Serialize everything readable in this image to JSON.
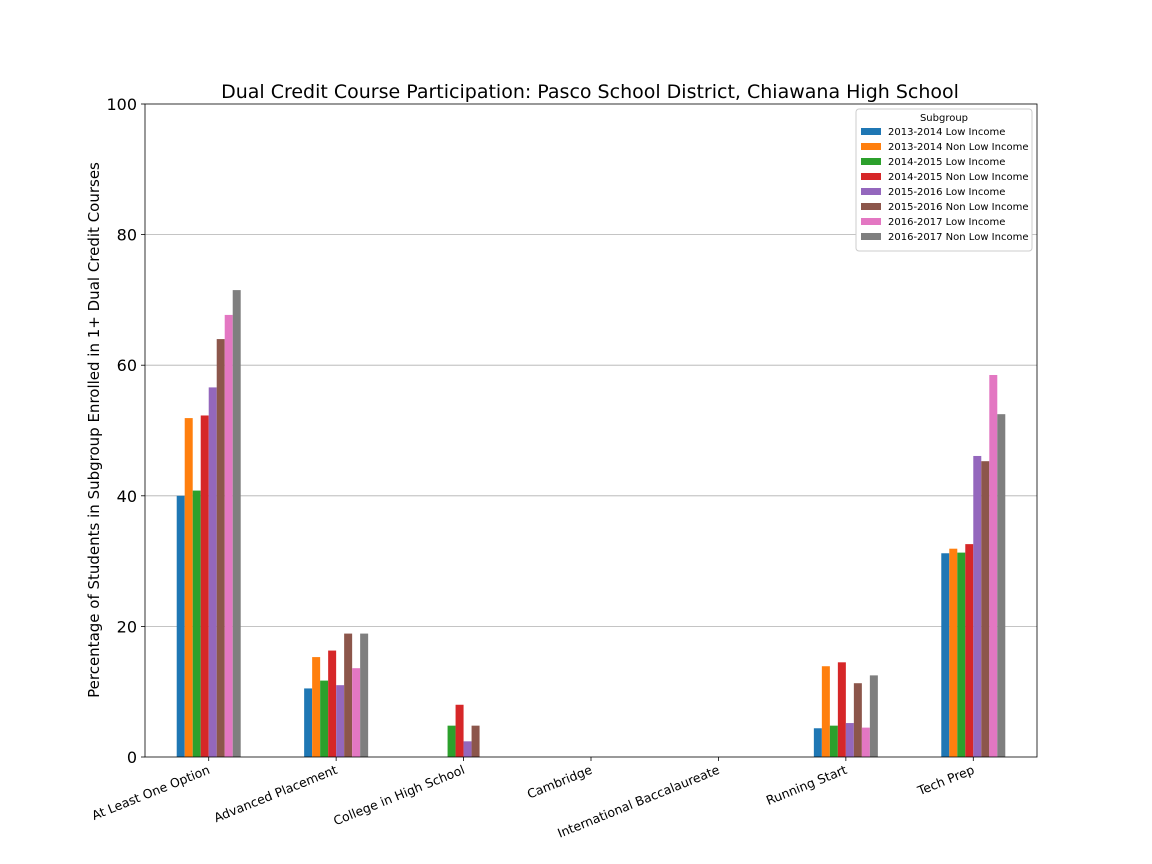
{
  "chart_data": {
    "type": "bar",
    "title": "Dual Credit Course Participation: Pasco School District, Chiawana High School",
    "xlabel": "",
    "ylabel": "Percentage of Students in Subgroup Enrolled in 1+ Dual Credit Courses",
    "ylim": [
      0,
      100
    ],
    "yticks": [
      0,
      20,
      40,
      60,
      80,
      100
    ],
    "grid": "horizontal",
    "legend": {
      "title": "Subgroup",
      "placement": "top-right"
    },
    "categories": [
      "At Least One Option",
      "Advanced Placement",
      "College in High School",
      "Cambridge",
      "International Baccalaureate",
      "Running Start",
      "Tech Prep"
    ],
    "series": [
      {
        "name": "2013-2014 Low Income",
        "color": "#1f77b4",
        "values": [
          40.0,
          10.5,
          0,
          0,
          0,
          4.4,
          31.2
        ]
      },
      {
        "name": "2013-2014 Non Low Income",
        "color": "#ff7f0e",
        "values": [
          51.9,
          15.3,
          0,
          0,
          0,
          13.9,
          31.9
        ]
      },
      {
        "name": "2014-2015 Low Income",
        "color": "#2ca02c",
        "values": [
          40.8,
          11.7,
          4.8,
          0,
          0,
          4.8,
          31.3
        ]
      },
      {
        "name": "2014-2015 Non Low Income",
        "color": "#d62728",
        "values": [
          52.3,
          16.3,
          8.0,
          0,
          0,
          14.5,
          32.6
        ]
      },
      {
        "name": "2015-2016 Low Income",
        "color": "#9467bd",
        "values": [
          56.6,
          11.0,
          2.4,
          0,
          0,
          5.2,
          46.1
        ]
      },
      {
        "name": "2015-2016 Non Low Income",
        "color": "#8c564b",
        "values": [
          64.0,
          18.9,
          4.8,
          0,
          0,
          11.3,
          45.3
        ]
      },
      {
        "name": "2016-2017 Low Income",
        "color": "#e377c2",
        "values": [
          67.7,
          13.6,
          0,
          0,
          0,
          4.5,
          58.5
        ]
      },
      {
        "name": "2016-2017 Non Low Income",
        "color": "#7f7f7f",
        "values": [
          71.5,
          18.9,
          0,
          0,
          0,
          12.5,
          52.5
        ]
      }
    ]
  }
}
